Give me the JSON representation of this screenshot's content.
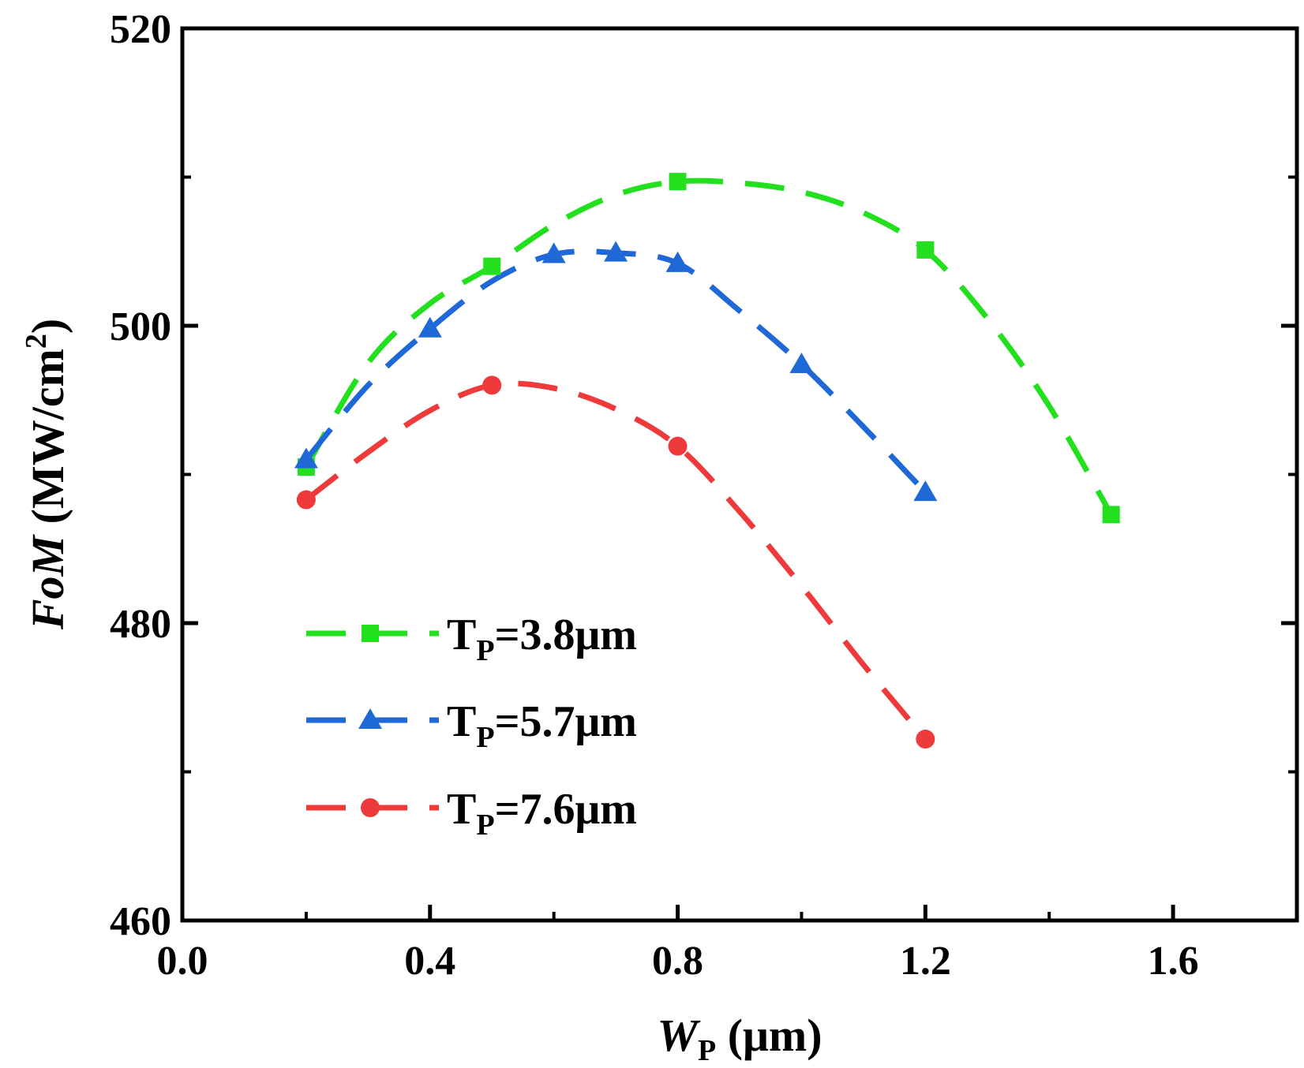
{
  "chart_data": {
    "type": "line",
    "xlabel": {
      "main": "W",
      "sub": "P",
      "unit": " (μm)"
    },
    "ylabel": {
      "main": "FoM",
      "unit": " (MW/cm",
      "sup": "2",
      "close": ")"
    },
    "xlim": [
      0.0,
      1.8
    ],
    "ylim": [
      460,
      520
    ],
    "xticks": [
      0.0,
      0.4,
      0.8,
      1.2,
      1.6
    ],
    "xtick_labels": [
      "0.0",
      "0.4",
      "0.8",
      "1.2",
      "1.6"
    ],
    "yticks": [
      460,
      480,
      500,
      520
    ],
    "ytick_labels": [
      "460",
      "480",
      "500",
      "520"
    ],
    "grid": false,
    "legend_position": "lower-left",
    "series": [
      {
        "name": "T_P=3.8μm",
        "label_main": "T",
        "label_sub": "P",
        "label_rest": "=3.8μm",
        "color": "#22e01e",
        "marker": "square",
        "x": [
          0.2,
          0.5,
          0.8,
          1.2,
          1.5
        ],
        "y": [
          490.5,
          504.0,
          509.7,
          505.1,
          487.3
        ],
        "curve": [
          [
            0.2,
            490.5
          ],
          [
            0.3,
            497.5
          ],
          [
            0.4,
            501.5
          ],
          [
            0.5,
            504.0
          ],
          [
            0.6,
            506.8
          ],
          [
            0.7,
            508.8
          ],
          [
            0.8,
            509.7
          ],
          [
            0.9,
            509.6
          ],
          [
            1.0,
            509.0
          ],
          [
            1.1,
            507.6
          ],
          [
            1.2,
            505.1
          ],
          [
            1.3,
            500.5
          ],
          [
            1.4,
            494.6
          ],
          [
            1.5,
            487.3
          ]
        ]
      },
      {
        "name": "T_P=5.7μm",
        "label_main": "T",
        "label_sub": "P",
        "label_rest": "=5.7μm",
        "color": "#1f68d8",
        "marker": "triangle",
        "x": [
          0.2,
          0.4,
          0.6,
          0.7,
          0.8,
          1.0,
          1.2
        ],
        "y": [
          491.0,
          499.8,
          504.8,
          504.9,
          504.2,
          497.4,
          488.8
        ],
        "curve": [
          [
            0.2,
            491.0
          ],
          [
            0.3,
            496.0
          ],
          [
            0.4,
            499.8
          ],
          [
            0.5,
            503.0
          ],
          [
            0.6,
            504.8
          ],
          [
            0.7,
            504.9
          ],
          [
            0.8,
            504.2
          ],
          [
            0.9,
            501.0
          ],
          [
            1.0,
            497.4
          ],
          [
            1.1,
            493.2
          ],
          [
            1.2,
            488.8
          ]
        ]
      },
      {
        "name": "T_P=7.6μm",
        "label_main": "T",
        "label_sub": "P",
        "label_rest": "=7.6μm",
        "color": "#ee3a3a",
        "marker": "circle",
        "x": [
          0.2,
          0.5,
          0.8,
          1.2
        ],
        "y": [
          488.3,
          496.0,
          491.9,
          472.2
        ],
        "curve": [
          [
            0.2,
            488.3
          ],
          [
            0.3,
            491.5
          ],
          [
            0.4,
            494.3
          ],
          [
            0.5,
            496.0
          ],
          [
            0.6,
            495.8
          ],
          [
            0.7,
            494.4
          ],
          [
            0.8,
            491.9
          ],
          [
            0.9,
            487.5
          ],
          [
            1.0,
            482.5
          ],
          [
            1.1,
            477.2
          ],
          [
            1.2,
            472.2
          ]
        ]
      }
    ]
  }
}
